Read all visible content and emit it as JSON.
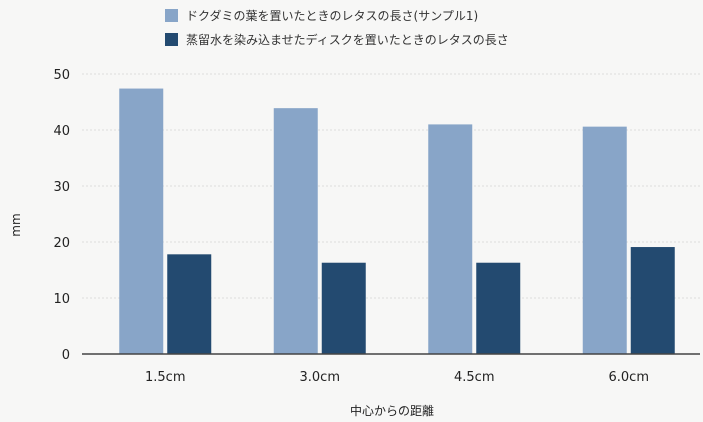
{
  "chart_data": {
    "type": "bar",
    "categories": [
      "1.5cm",
      "3.0cm",
      "4.5cm",
      "6.0cm"
    ],
    "series": [
      {
        "name": "ドクダミの葉を置いたときのレタスの長さ(サンプル1)",
        "values": [
          47.4,
          43.9,
          41.0,
          40.6
        ]
      },
      {
        "name": "蒸留水を染み込ませたディスクを置いたときのレタスの長さ",
        "values": [
          17.8,
          16.3,
          16.3,
          19.1
        ]
      }
    ],
    "title": "",
    "xlabel": "中心からの距離",
    "ylabel": "mm",
    "ylim": [
      0,
      50
    ],
    "yticks": [
      0,
      10,
      20,
      30,
      40,
      50
    ],
    "grid": true,
    "legend_position": "top",
    "colors": [
      "#88a5c8",
      "#234a70"
    ]
  }
}
